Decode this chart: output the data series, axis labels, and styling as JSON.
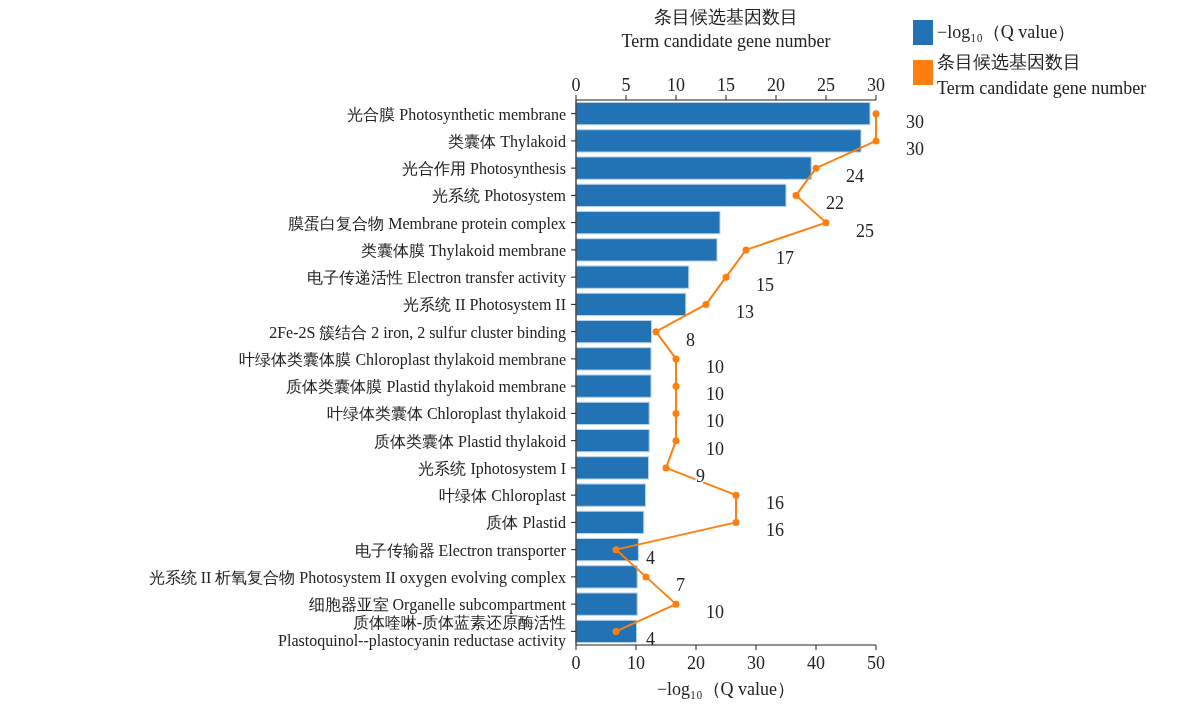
{
  "chart_data": {
    "type": "bar",
    "orientation": "horizontal",
    "categories": [
      "光合膜 Photosynthetic membrane",
      "类囊体 Thylakoid",
      "光合作用 Photosynthesis",
      "光系统 Photosystem",
      "膜蛋白复合物 Membrane protein complex",
      "类囊体膜 Thylakoid membrane",
      "电子传递活性 Electron transfer activity",
      "光系统 II Photosystem II",
      "2Fe-2S 簇结合 2 iron, 2 sulfur cluster binding",
      "叶绿体类囊体膜 Chloroplast thylakoid membrane",
      "质体类囊体膜 Plastid thylakoid membrane",
      "叶绿体类囊体 Chloroplast thylakoid",
      "质体类囊体 Plastid thylakoid",
      "光系统 Iphotosystem I",
      "叶绿体 Chloroplast",
      "质体 Plastid",
      "电子传输器 Electron transporter",
      "光系统 II 析氧复合物 Photosystem II oxygen evolving complex",
      "细胞器亚室 Organelle subcompartment",
      "质体喹啉-质体蓝素还原酶活性\nPlastoquinol--plastocyanin reductase activity"
    ],
    "series": [
      {
        "name": "−log₁₀（Q value）",
        "color": "#2273b5",
        "values": [
          49,
          47.5,
          39.2,
          35,
          24,
          23.5,
          18.8,
          18.3,
          12.6,
          12.5,
          12.5,
          12.2,
          12.2,
          12.1,
          11.6,
          11.3,
          10.4,
          10.2,
          10.2,
          10.1
        ]
      },
      {
        "name": "条目候选基因数目\nTerm candidate gene number",
        "type": "line",
        "axis": "x2",
        "marker": "circle",
        "color": "#ff7f0e",
        "values": [
          30,
          30,
          24,
          22,
          25,
          17,
          15,
          13,
          8,
          10,
          10,
          10,
          10,
          9,
          16,
          16,
          4,
          7,
          10,
          4
        ],
        "value_labels": [
          "30",
          "30",
          "24",
          "22",
          "25",
          "17",
          "15",
          "13",
          "8",
          "10",
          "10",
          "10",
          "10",
          "9",
          "16",
          "16",
          "4",
          "7",
          "10",
          "4"
        ]
      }
    ],
    "xlabel": "−log₁₀（Q value）",
    "xlim": [
      0,
      50
    ],
    "xticks": [
      0,
      10,
      20,
      30,
      40,
      50
    ],
    "x2label": "条目候选基因数目\nTerm candidate gene number",
    "x2lim": [
      0,
      30
    ],
    "x2ticks": [
      0,
      5,
      10,
      15,
      20,
      25,
      30
    ],
    "legend": "top right"
  }
}
